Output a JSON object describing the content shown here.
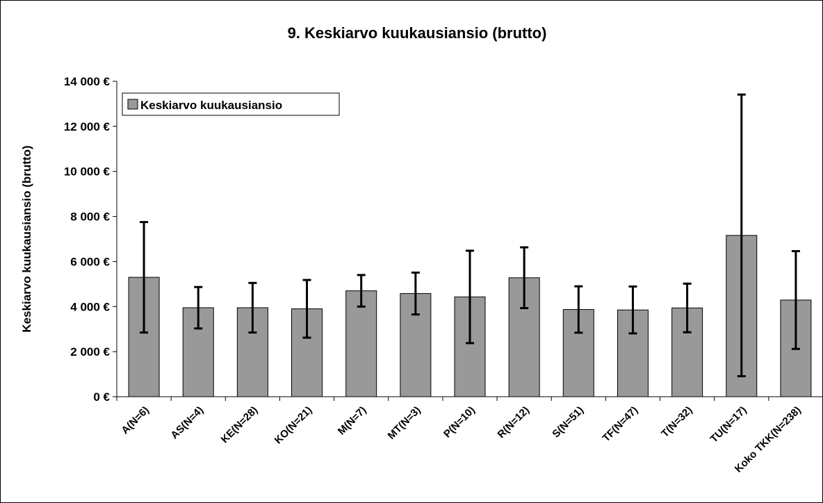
{
  "chart_data": {
    "type": "bar",
    "title": "9. Keskiarvo kuukausiansio (brutto)",
    "y_label": "Keskiarvo kuukausiansio (brutto)",
    "categories": [
      "A(N=6)",
      "AS(N=4)",
      "KE(N=28)",
      "KO(N=21)",
      "M(N=7)",
      "MT(N=3)",
      "P(N=10)",
      "R(N=12)",
      "S(N=51)",
      "TF(N=47)",
      "T(N=32)",
      "TU(N=17)",
      "Koko TKK(N=238)"
    ],
    "series": [
      {
        "name": "Keskiarvo kuukausiansio",
        "color": "#999999",
        "values": [
          5300,
          3950,
          3950,
          3900,
          4700,
          4580,
          4430,
          5280,
          3870,
          3850,
          3940,
          7160,
          4290
        ],
        "errors": [
          2450,
          920,
          1100,
          1280,
          700,
          930,
          2050,
          1350,
          1030,
          1040,
          1080,
          6250,
          2170
        ]
      }
    ],
    "ylim": [
      0,
      14000
    ],
    "yticks": [
      {
        "value": 0,
        "label": "0 €"
      },
      {
        "value": 2000,
        "label": "2 000 €"
      },
      {
        "value": 4000,
        "label": "4 000 €"
      },
      {
        "value": 6000,
        "label": "6 000 €"
      },
      {
        "value": 8000,
        "label": "8 000 €"
      },
      {
        "value": 10000,
        "label": "10 000 €"
      },
      {
        "value": 12000,
        "label": "12 000 €"
      },
      {
        "value": 14000,
        "label": "14 000 €"
      }
    ],
    "legend": "top-left"
  }
}
